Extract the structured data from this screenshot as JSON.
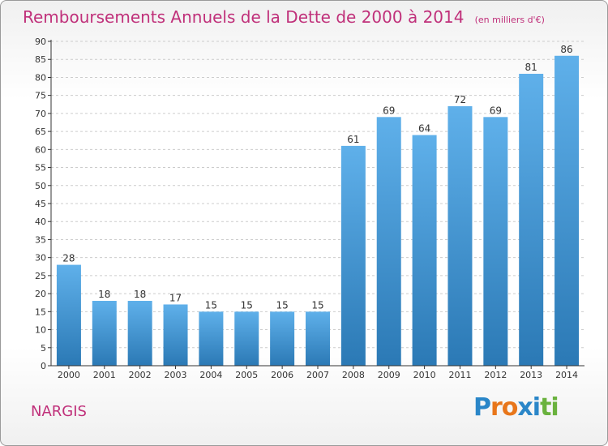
{
  "title": "Remboursements Annuels de la Dette de 2000 à 2014",
  "unit_label": "(en milliers d'€)",
  "commune": "NARGIS",
  "logo": {
    "text": "Proxiti",
    "letter_colors": [
      "#2a86c8",
      "#e8761a",
      "#e8761a",
      "#2a86c8",
      "#2a86c8",
      "#6ab23e",
      "#6ab23e"
    ]
  },
  "colors": {
    "title": "#c0307a",
    "bar_top": "#5fb0ea",
    "bar_bottom": "#2b79b5",
    "axis": "#333333",
    "grid": "#cccccc"
  },
  "chart_data": {
    "type": "bar",
    "categories": [
      "2000",
      "2001",
      "2002",
      "2003",
      "2004",
      "2005",
      "2006",
      "2007",
      "2008",
      "2009",
      "2010",
      "2011",
      "2012",
      "2013",
      "2014"
    ],
    "values": [
      28,
      18,
      18,
      17,
      15,
      15,
      15,
      15,
      61,
      69,
      64,
      72,
      69,
      81,
      86
    ],
    "ylim": [
      0,
      90
    ],
    "ytick_step": 5,
    "grid": "dashed horizontal",
    "data_labels": true
  }
}
